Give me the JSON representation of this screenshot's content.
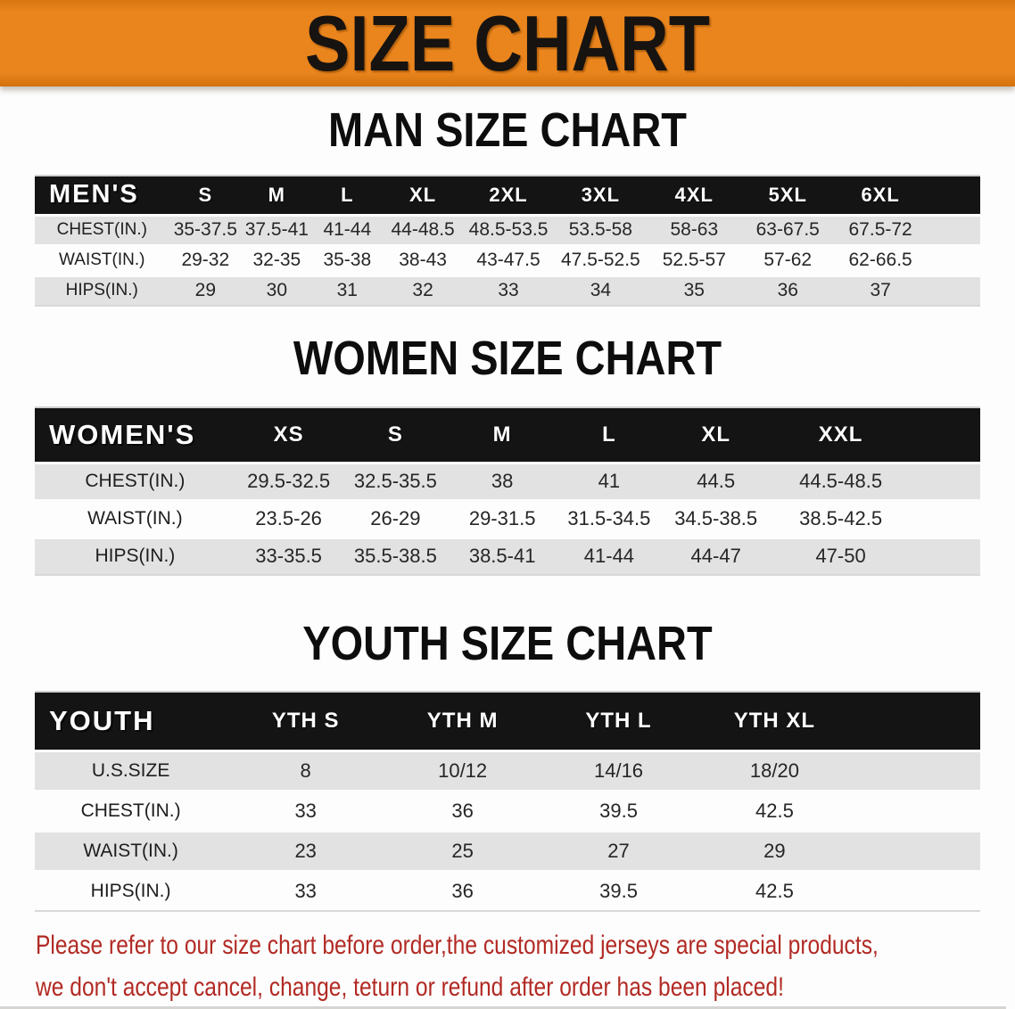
{
  "banner": {
    "title": "SIZE CHART"
  },
  "colors": {
    "banner_orange": "#ea851d",
    "bar_black": "#141414",
    "row_gray": "#e2e2e3",
    "disclaimer_red": "#b22a24"
  },
  "sections": [
    {
      "key": "men",
      "heading": "MAN SIZE CHART",
      "header_label": "MEN'S",
      "columns": [
        "S",
        "M",
        "L",
        "XL",
        "2XL",
        "3XL",
        "4XL",
        "5XL",
        "6XL"
      ],
      "rows": [
        {
          "label": "CHEST(IN.)",
          "values": [
            "35-37.5",
            "37.5-41",
            "41-44",
            "44-48.5",
            "48.5-53.5",
            "53.5-58",
            "58-63",
            "63-67.5",
            "67.5-72"
          ]
        },
        {
          "label": "WAIST(IN.)",
          "values": [
            "29-32",
            "32-35",
            "35-38",
            "38-43",
            "43-47.5",
            "47.5-52.5",
            "52.5-57",
            "57-62",
            "62-66.5"
          ]
        },
        {
          "label": "HIPS(IN.)",
          "values": [
            "29",
            "30",
            "31",
            "32",
            "33",
            "34",
            "35",
            "36",
            "37"
          ]
        }
      ]
    },
    {
      "key": "women",
      "heading": "WOMEN SIZE CHART",
      "header_label": "WOMEN'S",
      "columns": [
        "XS",
        "S",
        "M",
        "L",
        "XL",
        "XXL"
      ],
      "rows": [
        {
          "label": "CHEST(IN.)",
          "values": [
            "29.5-32.5",
            "32.5-35.5",
            "38",
            "41",
            "44.5",
            "44.5-48.5"
          ]
        },
        {
          "label": "WAIST(IN.)",
          "values": [
            "23.5-26",
            "26-29",
            "29-31.5",
            "31.5-34.5",
            "34.5-38.5",
            "38.5-42.5"
          ]
        },
        {
          "label": "HIPS(IN.)",
          "values": [
            "33-35.5",
            "35.5-38.5",
            "38.5-41",
            "41-44",
            "44-47",
            "47-50"
          ]
        }
      ]
    },
    {
      "key": "youth",
      "heading": "YOUTH SIZE CHART",
      "header_label": "YOUTH",
      "columns": [
        "YTH S",
        "YTH M",
        "YTH L",
        "YTH XL"
      ],
      "rows": [
        {
          "label": "U.S.SIZE",
          "values": [
            "8",
            "10/12",
            "14/16",
            "18/20"
          ]
        },
        {
          "label": "CHEST(IN.)",
          "values": [
            "33",
            "36",
            "39.5",
            "42.5"
          ]
        },
        {
          "label": "WAIST(IN.)",
          "values": [
            "23",
            "25",
            "27",
            "29"
          ]
        },
        {
          "label": "HIPS(IN.)",
          "values": [
            "33",
            "36",
            "39.5",
            "42.5"
          ]
        }
      ]
    }
  ],
  "disclaimer": {
    "line1": "Please refer to our size chart before order,the customized jerseys are special products,",
    "line2": "we don't accept cancel, change, teturn or refund after order has been placed!"
  }
}
